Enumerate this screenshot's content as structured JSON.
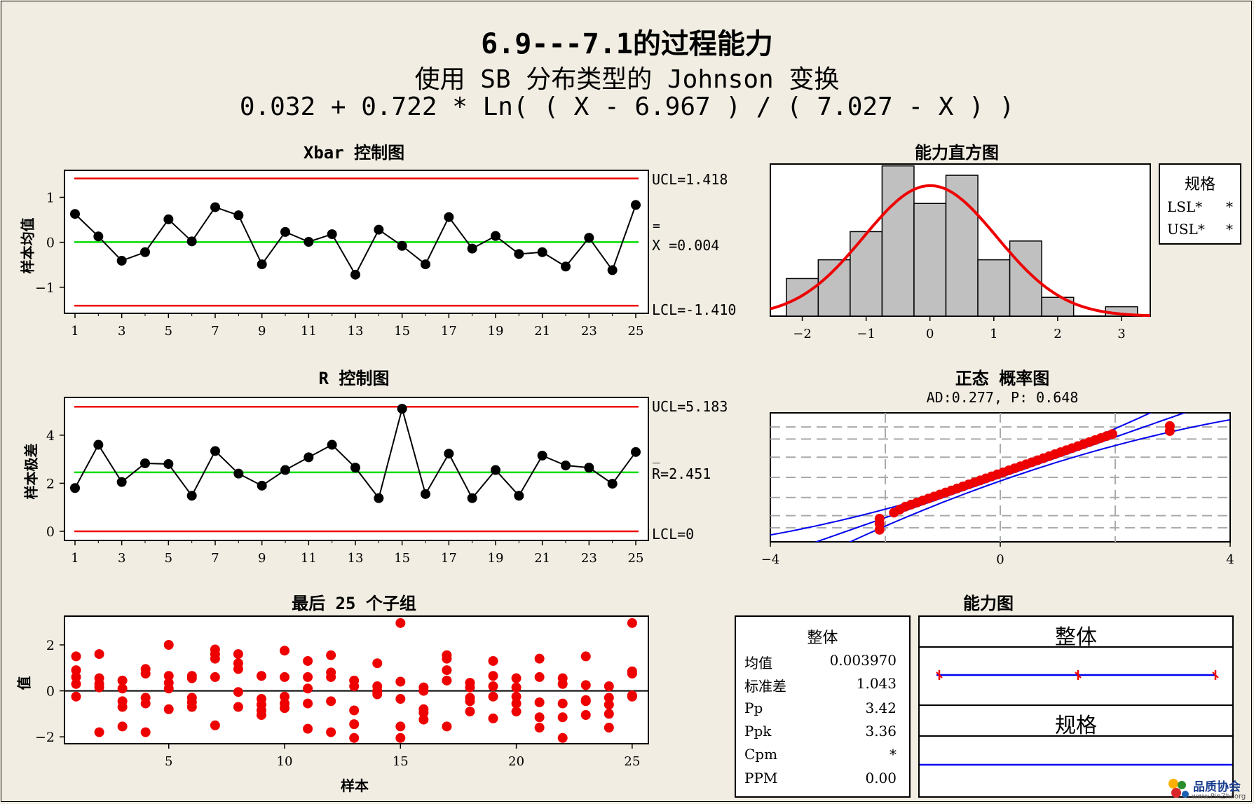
{
  "title": "6.9---7.1的过程能力",
  "subtitle1": "使用 SB 分布类型的 Johnson 变换",
  "subtitle2": "0.032 + 0.722 * Ln( ( X - 6.967 ) / ( 7.027 - X ) )",
  "colors": {
    "background": "#f1ede2",
    "limit": "#ee0000",
    "center": "#00dd00",
    "point": "#000000",
    "sample": "#ee0000",
    "fit": "#ee0000",
    "bar": "#c0c0c0",
    "ci": "#0000ee"
  },
  "chart_data": [
    {
      "type": "line",
      "title": "Xbar 控制图",
      "ylabel": "样本均值",
      "x": [
        1,
        2,
        3,
        4,
        5,
        6,
        7,
        8,
        9,
        10,
        11,
        12,
        13,
        14,
        15,
        16,
        17,
        18,
        19,
        20,
        21,
        22,
        23,
        24,
        25
      ],
      "y": [
        0.63,
        0.13,
        -0.41,
        -0.22,
        0.51,
        0.02,
        0.78,
        0.6,
        -0.49,
        0.23,
        0.01,
        0.18,
        -0.72,
        0.28,
        -0.08,
        -0.49,
        0.56,
        -0.14,
        0.14,
        -0.26,
        -0.22,
        -0.54,
        0.1,
        -0.62,
        0.83
      ],
      "xticks": [
        "1",
        "3",
        "5",
        "7",
        "9",
        "11",
        "13",
        "15",
        "17",
        "19",
        "21",
        "23",
        "25"
      ],
      "yticks": [
        "1",
        "0",
        "-1"
      ],
      "ylim": [
        -1.58,
        1.6
      ],
      "ucl": 1.418,
      "center": 0.004,
      "lcl": -1.41,
      "ucl_label": "UCL=1.418",
      "center_label": "X =0.004",
      "center_bar": "=",
      "lcl_label": "LCL=-1.410"
    },
    {
      "type": "line",
      "title": "R 控制图",
      "ylabel": "样本极差",
      "x": [
        1,
        2,
        3,
        4,
        5,
        6,
        7,
        8,
        9,
        10,
        11,
        12,
        13,
        14,
        15,
        16,
        17,
        18,
        19,
        20,
        21,
        22,
        23,
        24,
        25
      ],
      "y": [
        1.8,
        3.6,
        2.05,
        2.83,
        2.8,
        1.48,
        3.34,
        2.4,
        1.9,
        2.55,
        3.08,
        3.6,
        2.65,
        1.38,
        5.1,
        1.55,
        3.23,
        1.38,
        2.55,
        1.48,
        3.15,
        2.74,
        2.65,
        1.98,
        3.3
      ],
      "xticks": [
        "1",
        "3",
        "5",
        "7",
        "9",
        "11",
        "13",
        "15",
        "17",
        "19",
        "21",
        "23",
        "25"
      ],
      "yticks": [
        "4",
        "2",
        "0"
      ],
      "ylim": [
        -0.38,
        5.57
      ],
      "ucl": 5.183,
      "center": 2.451,
      "lcl": 0,
      "ucl_label": "UCL=5.183",
      "center_label": "R=2.451",
      "center_bar": "_",
      "lcl_label": "LCL=0"
    },
    {
      "type": "scatter",
      "title": "最后 25 个子组",
      "xlabel": "样本",
      "ylabel": "值",
      "xticks": [
        "5",
        "10",
        "15",
        "20",
        "25"
      ],
      "yticks": [
        "2",
        "0",
        "-2"
      ],
      "xlim": [
        0.5,
        25.7
      ],
      "ylim": [
        -2.3,
        3.25
      ],
      "points": [
        [
          1,
          1.5
        ],
        [
          1,
          0.9
        ],
        [
          1,
          0.6
        ],
        [
          1,
          0.3
        ],
        [
          1,
          -0.25
        ],
        [
          2,
          1.6
        ],
        [
          2,
          0.55
        ],
        [
          2,
          0.3
        ],
        [
          2,
          0.15
        ],
        [
          2,
          -1.8
        ],
        [
          3,
          0.45
        ],
        [
          3,
          0.1
        ],
        [
          3,
          -0.45
        ],
        [
          3,
          -0.7
        ],
        [
          3,
          -1.55
        ],
        [
          4,
          0.95
        ],
        [
          4,
          0.75
        ],
        [
          4,
          -0.3
        ],
        [
          4,
          -0.55
        ],
        [
          4,
          -1.8
        ],
        [
          5,
          2.0
        ],
        [
          5,
          0.65
        ],
        [
          5,
          0.35
        ],
        [
          5,
          0.1
        ],
        [
          5,
          -0.8
        ],
        [
          6,
          0.65
        ],
        [
          6,
          0.55
        ],
        [
          6,
          -0.3
        ],
        [
          6,
          -0.5
        ],
        [
          6,
          -0.7
        ],
        [
          7,
          1.8
        ],
        [
          7,
          1.6
        ],
        [
          7,
          1.4
        ],
        [
          7,
          0.6
        ],
        [
          7,
          -1.5
        ],
        [
          8,
          1.6
        ],
        [
          8,
          1.2
        ],
        [
          8,
          0.95
        ],
        [
          8,
          -0.05
        ],
        [
          8,
          -0.7
        ],
        [
          9,
          0.65
        ],
        [
          9,
          -0.35
        ],
        [
          9,
          -0.6
        ],
        [
          9,
          -0.85
        ],
        [
          9,
          -1.05
        ],
        [
          10,
          1.75
        ],
        [
          10,
          0.6
        ],
        [
          10,
          -0.25
        ],
        [
          10,
          -0.55
        ],
        [
          10,
          -0.75
        ],
        [
          11,
          1.3
        ],
        [
          11,
          0.6
        ],
        [
          11,
          0.1
        ],
        [
          11,
          -0.55
        ],
        [
          11,
          -1.65
        ],
        [
          12,
          1.55
        ],
        [
          12,
          0.8
        ],
        [
          12,
          0.6
        ],
        [
          12,
          -0.45
        ],
        [
          12,
          -1.8
        ],
        [
          13,
          0.45
        ],
        [
          13,
          0.2
        ],
        [
          13,
          -0.85
        ],
        [
          13,
          -1.45
        ],
        [
          13,
          -2.05
        ],
        [
          14,
          1.2
        ],
        [
          14,
          0.2
        ],
        [
          14,
          0.0
        ],
        [
          14,
          -0.05
        ],
        [
          14,
          -0.15
        ],
        [
          15,
          2.95
        ],
        [
          15,
          0.4
        ],
        [
          15,
          -0.35
        ],
        [
          15,
          -1.55
        ],
        [
          15,
          -2.05
        ],
        [
          16,
          0.15
        ],
        [
          16,
          0.0
        ],
        [
          16,
          -0.8
        ],
        [
          16,
          -1.25
        ],
        [
          16,
          -0.95
        ],
        [
          17,
          1.55
        ],
        [
          17,
          1.4
        ],
        [
          17,
          0.9
        ],
        [
          17,
          0.45
        ],
        [
          17,
          -1.55
        ],
        [
          18,
          0.35
        ],
        [
          18,
          0.15
        ],
        [
          18,
          -0.3
        ],
        [
          18,
          -0.45
        ],
        [
          18,
          -0.9
        ],
        [
          19,
          1.3
        ],
        [
          19,
          0.65
        ],
        [
          19,
          0.2
        ],
        [
          19,
          -0.25
        ],
        [
          19,
          -1.2
        ],
        [
          20,
          0.55
        ],
        [
          20,
          0.15
        ],
        [
          20,
          -0.25
        ],
        [
          20,
          -0.55
        ],
        [
          20,
          -0.9
        ],
        [
          21,
          1.4
        ],
        [
          21,
          0.6
        ],
        [
          21,
          -0.5
        ],
        [
          21,
          -1.15
        ],
        [
          21,
          -1.6
        ],
        [
          22,
          0.55
        ],
        [
          22,
          0.3
        ],
        [
          22,
          -0.55
        ],
        [
          22,
          -1.15
        ],
        [
          22,
          -2.05
        ],
        [
          23,
          1.5
        ],
        [
          23,
          0.25
        ],
        [
          23,
          -0.4
        ],
        [
          23,
          -0.45
        ],
        [
          23,
          -1.05
        ],
        [
          24,
          0.2
        ],
        [
          24,
          -0.3
        ],
        [
          24,
          -0.6
        ],
        [
          24,
          -1.0
        ],
        [
          24,
          -1.6
        ],
        [
          25,
          2.95
        ],
        [
          25,
          0.85
        ],
        [
          25,
          0.75
        ],
        [
          25,
          -0.2
        ],
        [
          25,
          -0.25
        ]
      ]
    },
    {
      "type": "bar",
      "title": "能力直方图",
      "xticks": [
        "-2",
        "-1",
        "0",
        "1",
        "2",
        "3"
      ],
      "xlim": [
        -2.5,
        3.45
      ],
      "ylim": [
        0,
        16.2
      ],
      "bins": [
        [
          -2.25,
          -1.75,
          4
        ],
        [
          -1.75,
          -1.25,
          6
        ],
        [
          -1.25,
          -0.75,
          9
        ],
        [
          -0.75,
          -0.25,
          16
        ],
        [
          -0.25,
          0.25,
          12
        ],
        [
          0.25,
          0.75,
          15
        ],
        [
          0.75,
          1.25,
          6
        ],
        [
          1.25,
          1.75,
          8
        ],
        [
          1.75,
          2.25,
          2
        ],
        [
          2.25,
          2.75,
          0
        ],
        [
          2.75,
          3.25,
          1
        ]
      ],
      "fit": {
        "mean": 0.00397,
        "stdev": 1.043,
        "peak": 13.9
      },
      "legend_title": "规格",
      "legend_items": [
        {
          "label": "LSL*",
          "value": "*"
        },
        {
          "label": "USL*",
          "value": "*"
        }
      ]
    },
    {
      "type": "scatter",
      "title": "正态 概率图",
      "subtitle": "AD:0.277, P: 0.648",
      "xticks": [
        "-4",
        "0",
        "4"
      ],
      "xlim": [
        -4,
        4
      ],
      "ylim": [
        -3.2,
        3.2
      ],
      "points_x": [
        -2.1,
        -2.1,
        -2.1,
        -1.85,
        -1.75,
        -1.65,
        -1.55,
        -1.45,
        -1.35,
        -1.25,
        -1.15,
        -1.05,
        -0.95,
        -0.85,
        -0.75,
        -0.65,
        -0.55,
        -0.45,
        -0.35,
        -0.25,
        -0.15,
        -0.05,
        0.05,
        0.15,
        0.25,
        0.35,
        0.45,
        0.55,
        0.65,
        0.75,
        0.85,
        0.95,
        1.05,
        1.15,
        1.25,
        1.35,
        1.45,
        1.55,
        1.65,
        1.75,
        1.85,
        1.95,
        2.95,
        2.95
      ],
      "points_y": [
        -2.6,
        -2.3,
        -2.05,
        -1.75,
        -1.6,
        -1.45,
        -1.35,
        -1.25,
        -1.15,
        -1.05,
        -0.95,
        -0.85,
        -0.75,
        -0.65,
        -0.55,
        -0.45,
        -0.35,
        -0.25,
        -0.15,
        -0.05,
        0.05,
        0.15,
        0.25,
        0.35,
        0.45,
        0.55,
        0.65,
        0.75,
        0.85,
        0.95,
        1.05,
        1.15,
        1.25,
        1.35,
        1.45,
        1.55,
        1.65,
        1.75,
        1.85,
        1.95,
        2.05,
        2.15,
        2.3,
        2.55
      ],
      "grid_y": [
        -2.5,
        -1.9,
        -1.0,
        0.0,
        1.0,
        1.9,
        2.5
      ],
      "grid_x": [
        -2,
        0,
        2
      ]
    }
  ],
  "capability": {
    "title": "能力图",
    "stats_title": "整体",
    "stats": [
      {
        "label": "均值",
        "value": "0.003970"
      },
      {
        "label": "标准差",
        "value": "1.043"
      },
      {
        "label": "Pp",
        "value": "3.42"
      },
      {
        "label": "Ppk",
        "value": "3.36"
      },
      {
        "label": "Cpm",
        "value": "*"
      },
      {
        "label": "PPM",
        "value": "0.00"
      }
    ],
    "overall_label": "整体",
    "spec_label": "规格"
  },
  "watermark": {
    "line1": "品质协会",
    "line2": "www.PinZhi.org"
  }
}
